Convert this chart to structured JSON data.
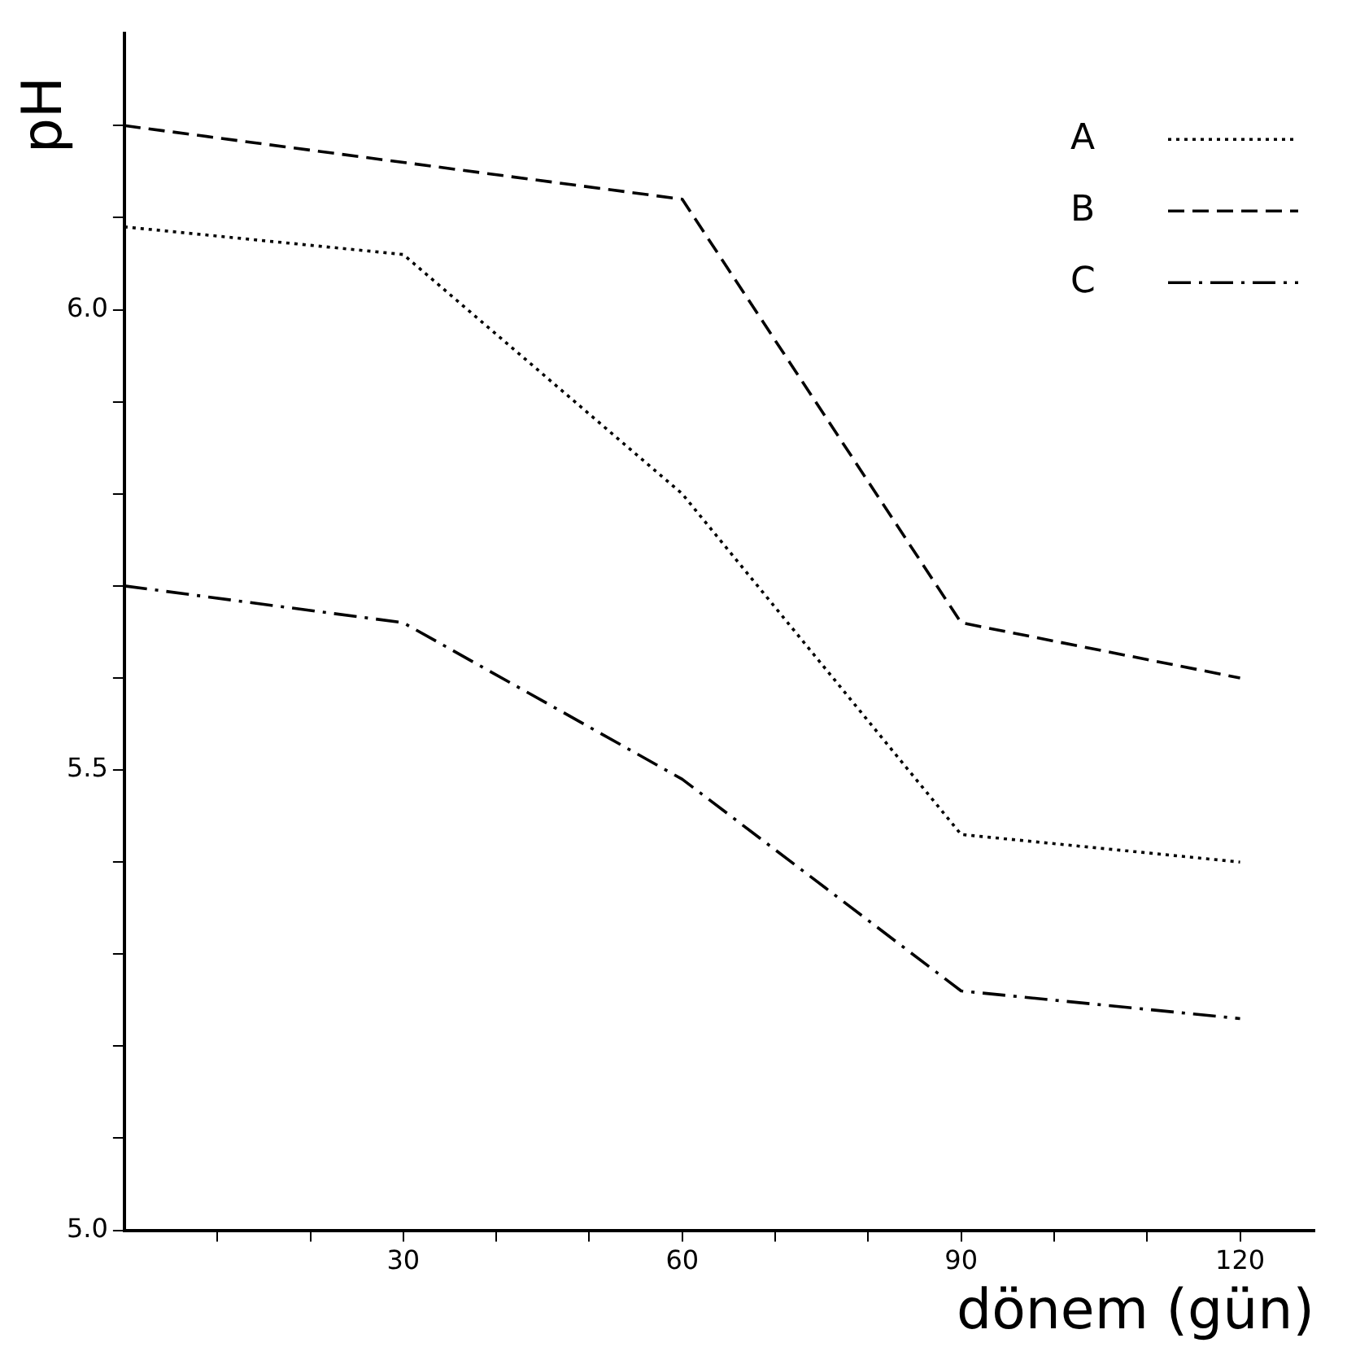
{
  "chart_data": {
    "type": "line",
    "xlabel": "dönem (gün)",
    "ylabel": "pH",
    "x": [
      0,
      30,
      60,
      90,
      120
    ],
    "xlim": [
      0,
      128
    ],
    "xticks": [
      {
        "value": 10,
        "label": null
      },
      {
        "value": 20,
        "label": null
      },
      30,
      {
        "value": 40,
        "label": null
      },
      {
        "value": 50,
        "label": null
      },
      60,
      {
        "value": 70,
        "label": null
      },
      {
        "value": 80,
        "label": null
      },
      90,
      {
        "value": 100,
        "label": null
      },
      {
        "value": 110,
        "label": null
      },
      120
    ],
    "ylim": [
      5.0,
      6.3
    ],
    "yticks": [
      {
        "value": 5.0,
        "label": "5.0"
      },
      {
        "value": 5.1,
        "label": null
      },
      {
        "value": 5.2,
        "label": null
      },
      {
        "value": 5.3,
        "label": null
      },
      {
        "value": 5.4,
        "label": null
      },
      {
        "value": 5.5,
        "label": "5.5"
      },
      {
        "value": 5.6,
        "label": null
      },
      {
        "value": 5.7,
        "label": null
      },
      {
        "value": 5.8,
        "label": null
      },
      {
        "value": 5.9,
        "label": null
      },
      {
        "value": 6.0,
        "label": "6.0"
      },
      {
        "value": 6.1,
        "label": null
      },
      {
        "value": 6.2,
        "label": null
      }
    ],
    "grid": false,
    "legend": "top right",
    "marker": "none",
    "series": [
      {
        "name": "A",
        "color": "#000000",
        "line_style": "dotted",
        "values": [
          6.09,
          6.06,
          5.8,
          5.43,
          5.4
        ]
      },
      {
        "name": "B",
        "color": "#000000",
        "line_style": "dashed",
        "values": [
          6.2,
          6.16,
          6.12,
          5.66,
          5.6
        ]
      },
      {
        "name": "C",
        "color": "#000000",
        "line_style": "dashdot",
        "values": [
          5.7,
          5.66,
          5.49,
          5.26,
          5.23
        ]
      }
    ]
  }
}
